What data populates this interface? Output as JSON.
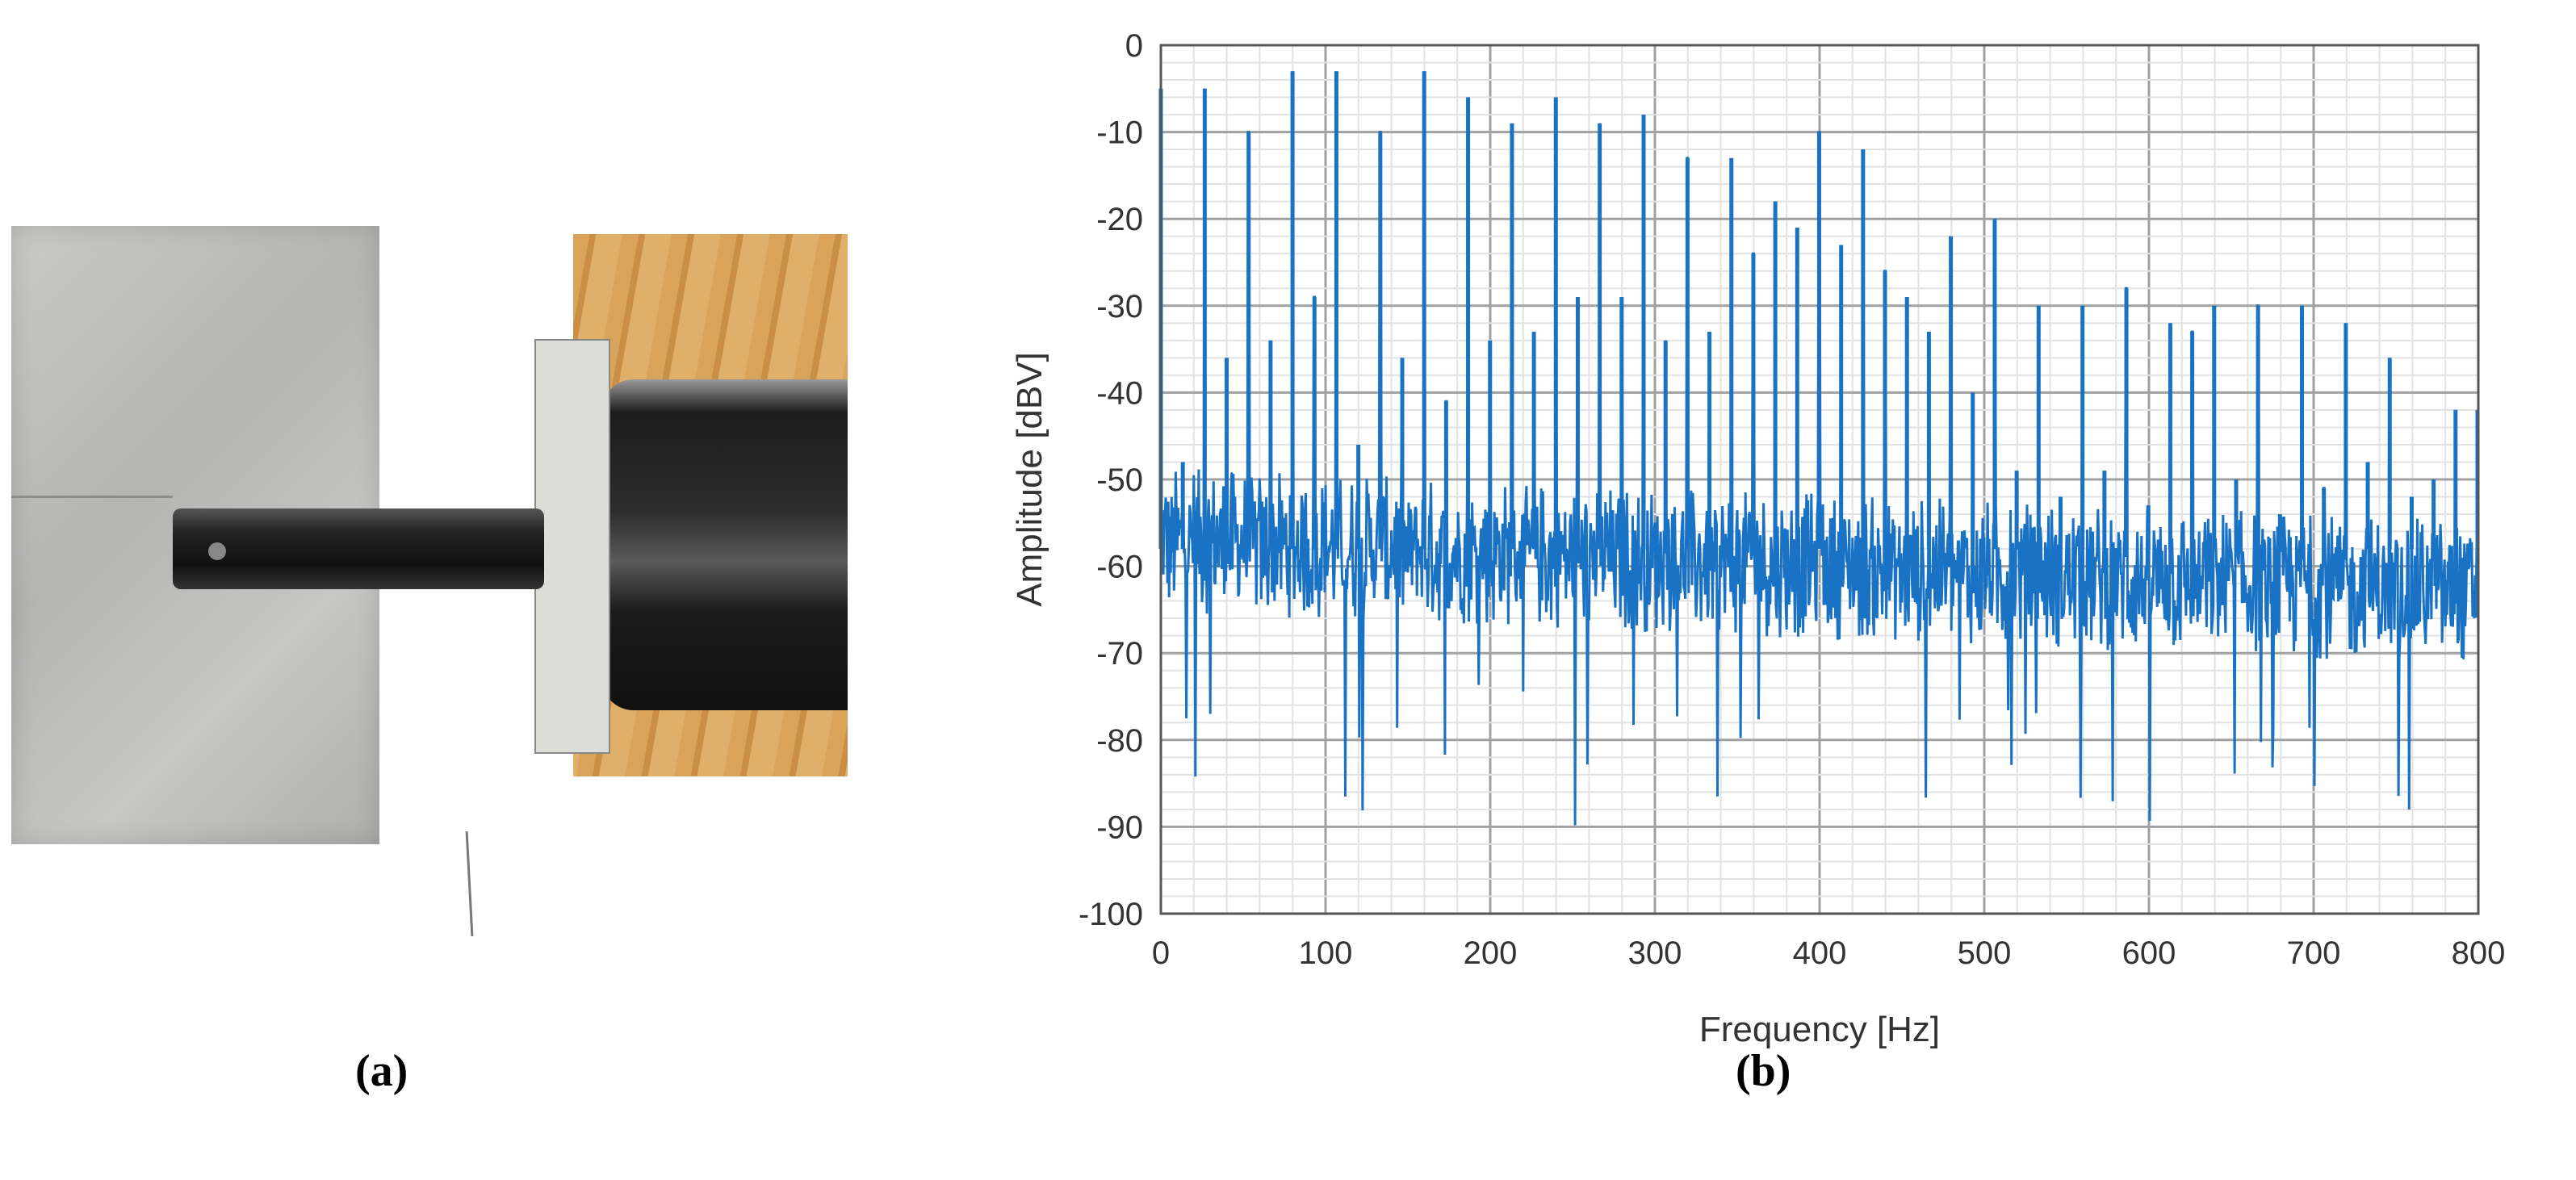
{
  "panel_labels": {
    "a": "(a)",
    "b": "(b)"
  },
  "chart_data": {
    "type": "line",
    "title": "",
    "xlabel": "Frequency [Hz]",
    "ylabel": "Amplitude [dBV]",
    "xlim": [
      0,
      800
    ],
    "ylim": [
      -100,
      0
    ],
    "xticks": [
      "0",
      "100",
      "200",
      "300",
      "400",
      "500",
      "600",
      "700",
      "800"
    ],
    "yticks": [
      "0",
      "-10",
      "-20",
      "-30",
      "-40",
      "-50",
      "-60",
      "-70",
      "-80",
      "-90",
      "-100"
    ],
    "grid": true,
    "line_color": "#1a72c4",
    "fundamental_hz": 26.65,
    "harmonic_peaks_dbv": [
      -5,
      -48,
      -5,
      -36,
      -10,
      -34,
      -3,
      -29,
      -3,
      -46,
      -10,
      -36,
      -3,
      -41,
      -6,
      -34,
      -9,
      -33,
      -6,
      -29,
      -9,
      -29,
      -8,
      -34,
      -13,
      -33,
      -13,
      -24,
      -18,
      -21,
      -10,
      -23,
      -12,
      -26,
      -29,
      -33,
      -22,
      -40,
      -20,
      -49,
      -30,
      -52,
      -30,
      -49,
      -28,
      -53,
      -32,
      -33,
      -30,
      -50,
      -30,
      -54,
      -30,
      -51,
      -32,
      -48,
      -36,
      -52,
      -50,
      -42,
      -42
    ],
    "noise_floor": {
      "mean_low_freq_dbv": -57,
      "mean_high_freq_dbv": -63,
      "spread_dbv": 12,
      "min_dbv": -91
    }
  }
}
